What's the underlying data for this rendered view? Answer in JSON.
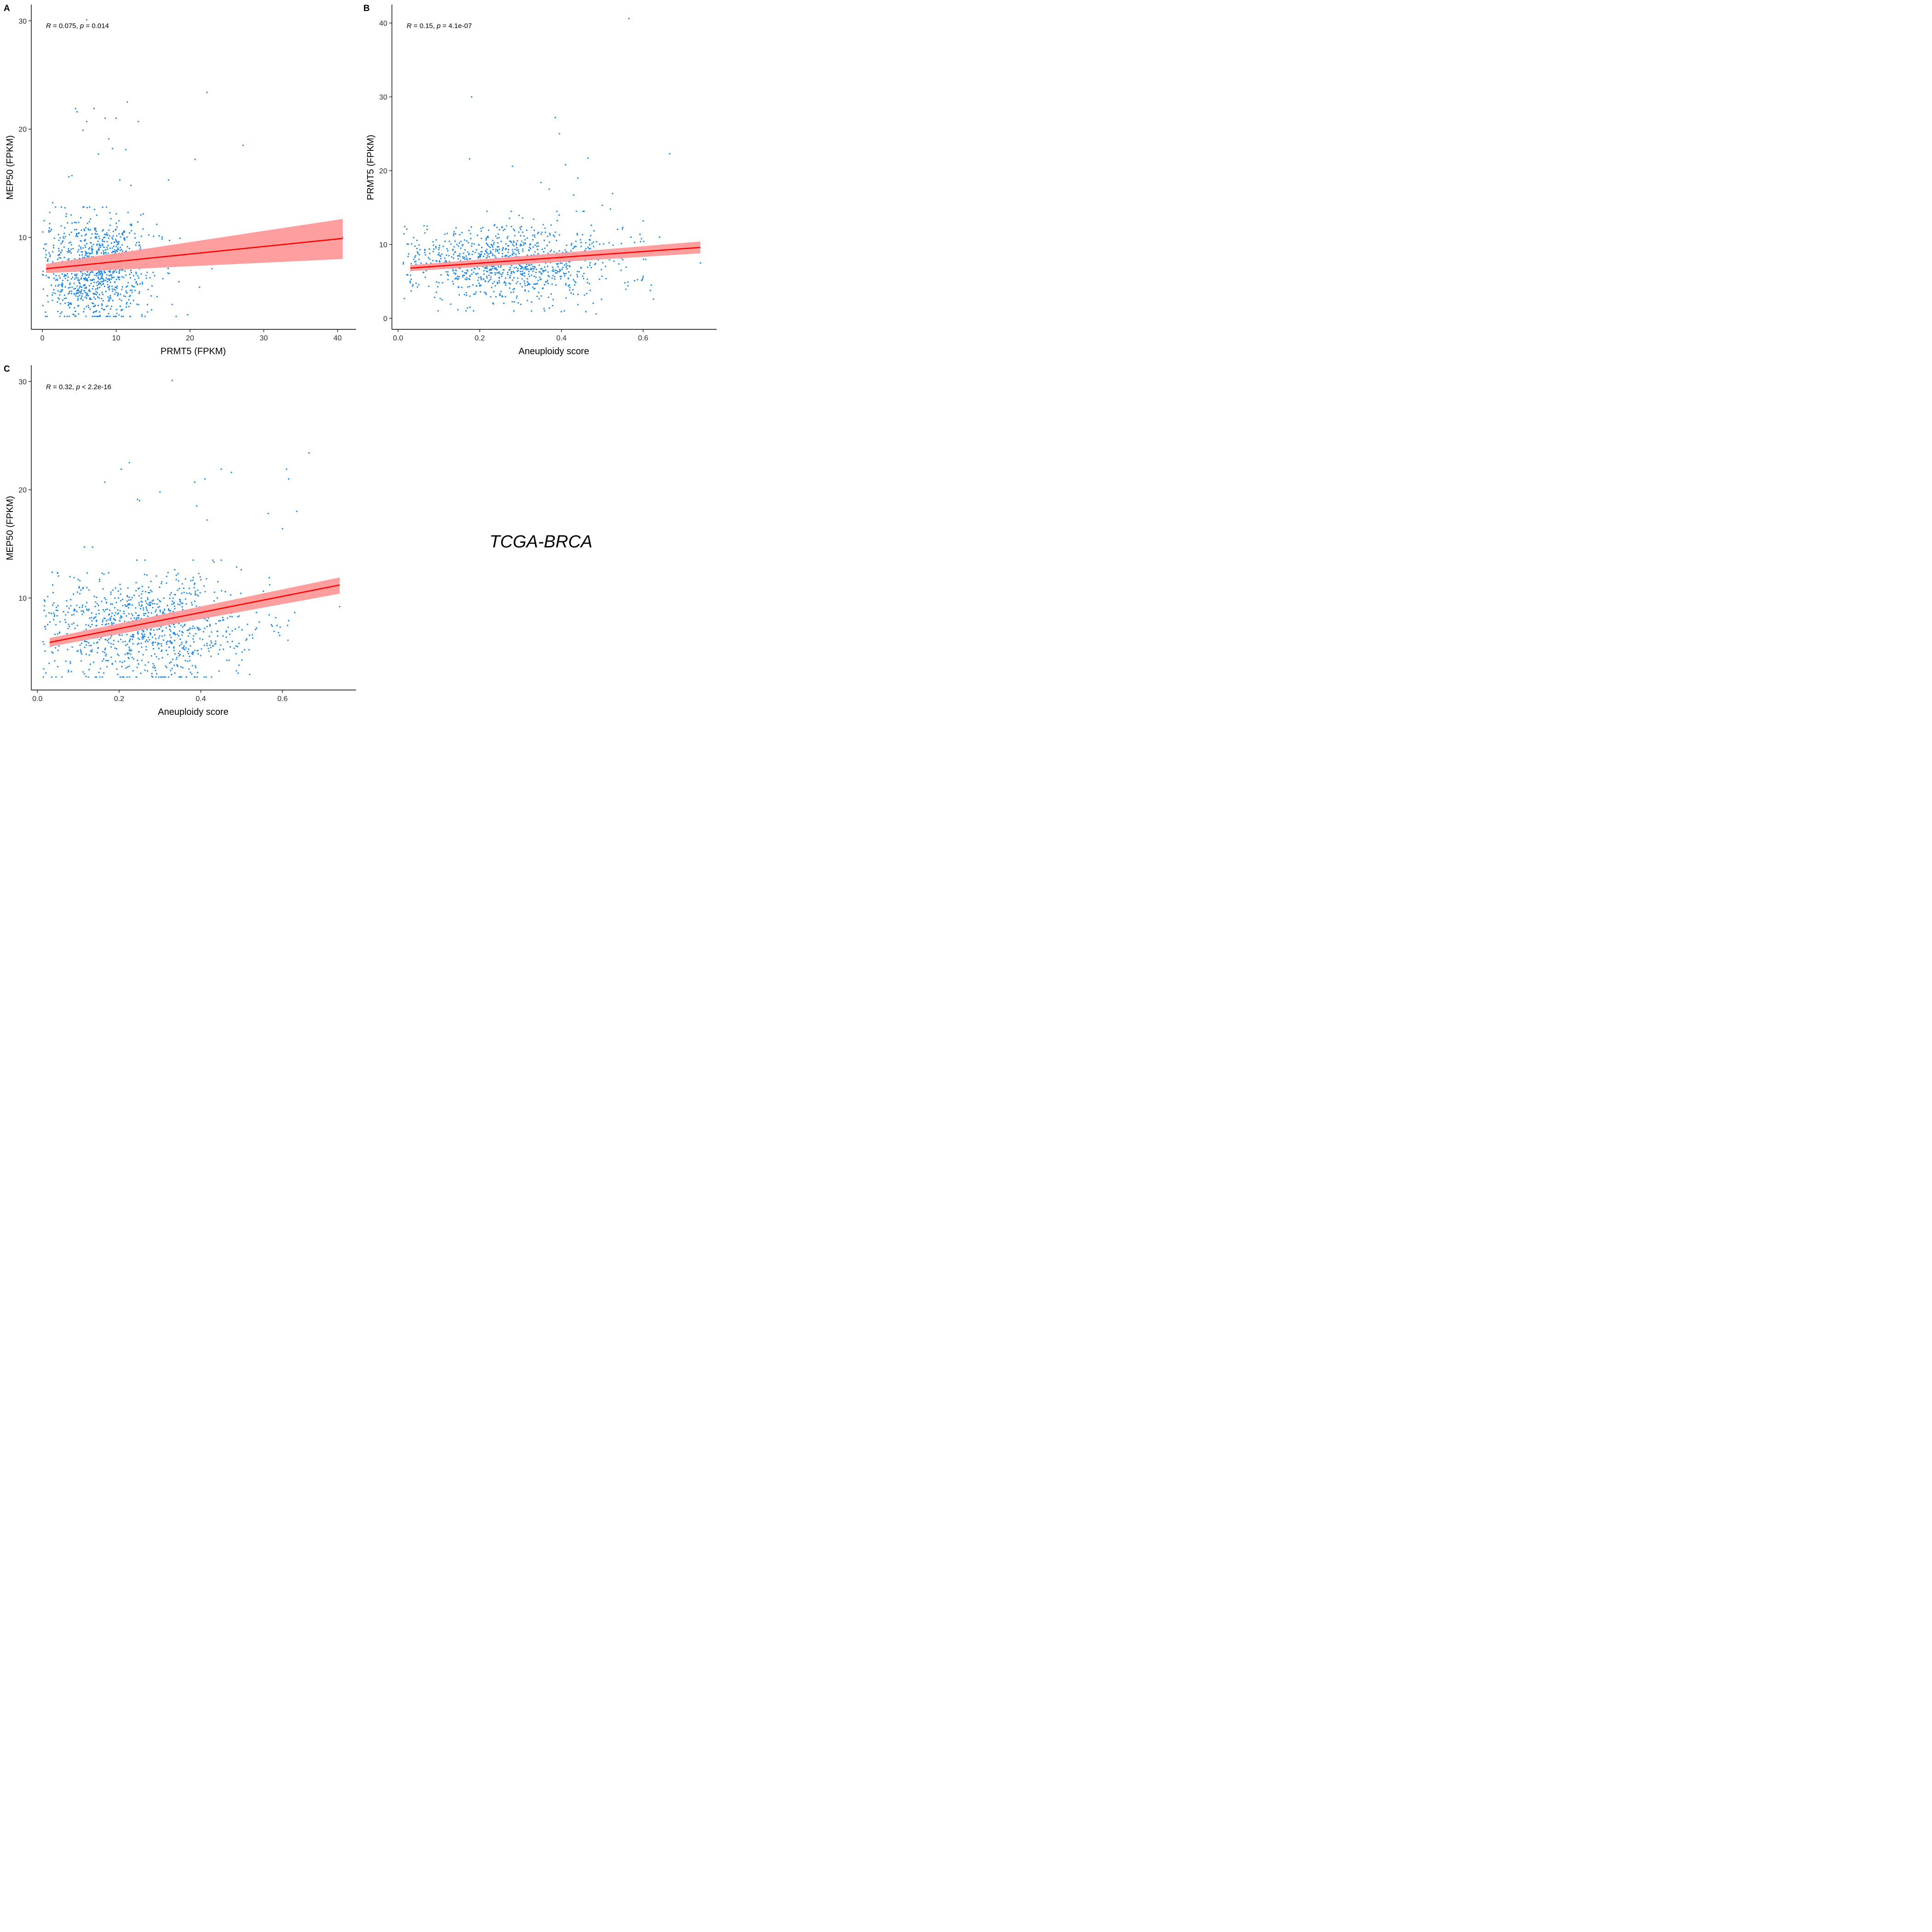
{
  "dataset_label": "TCGA-BRCA",
  "colors": {
    "points": "#1E88E5",
    "fit_line": "#FF0000",
    "ci_band": "#FF9999"
  },
  "chart_data": [
    {
      "panel": "A",
      "type": "scatter",
      "xlabel": "PRMT5 (FPKM)",
      "ylabel": "MEP50 (FPKM)",
      "xlim": [
        -1.5,
        42.5
      ],
      "ylim": [
        1.5,
        31.5
      ],
      "xticks": [
        0,
        10,
        20,
        30,
        40
      ],
      "yticks": [
        10,
        20,
        30
      ],
      "annotation": {
        "r_symbol": "R",
        "r_text": " = 0.075, ",
        "p_symbol": "p",
        "p_text": " = 0.014"
      },
      "fit": {
        "x": [
          0.5,
          40.7
        ],
        "y": [
          7.1,
          9.9
        ],
        "ci_low": [
          6.7,
          8.0
        ],
        "ci_high": [
          7.55,
          11.7
        ]
      },
      "point_cloud": {
        "n": 1000,
        "x_center": 7.5,
        "x_spread": 3.6,
        "y_center": 7.0,
        "y_spread": 2.4,
        "y_min": 2.7,
        "y_max": 12.8
      },
      "points": [
        [
          6.0,
          30.1
        ],
        [
          22.3,
          23.4
        ],
        [
          11.5,
          22.5
        ],
        [
          4.5,
          21.9
        ],
        [
          4.7,
          21.6
        ],
        [
          7.0,
          21.9
        ],
        [
          8.5,
          21.0
        ],
        [
          10.0,
          21.0
        ],
        [
          6.0,
          20.7
        ],
        [
          13.0,
          20.7
        ],
        [
          5.5,
          19.9
        ],
        [
          9.0,
          19.1
        ],
        [
          27.2,
          18.5
        ],
        [
          9.5,
          18.2
        ],
        [
          11.3,
          18.1
        ],
        [
          20.7,
          17.2
        ],
        [
          7.6,
          17.7
        ],
        [
          17.1,
          15.3
        ],
        [
          10.5,
          15.3
        ],
        [
          12.0,
          14.8
        ],
        [
          4.0,
          15.7
        ],
        [
          3.6,
          15.6
        ],
        [
          24.9,
          8.4
        ],
        [
          21.3,
          5.4
        ],
        [
          23.0,
          7.1
        ],
        [
          19.0,
          9.0
        ],
        [
          18.5,
          5.9
        ],
        [
          17.6,
          3.8
        ],
        [
          16.2,
          7.4
        ],
        [
          14.8,
          3.3
        ],
        [
          15.5,
          11.2
        ],
        [
          1.4,
          13.2
        ],
        [
          0.5,
          8.4
        ],
        [
          40.7,
          10.0
        ],
        [
          1.0,
          12.3
        ]
      ]
    },
    {
      "panel": "B",
      "type": "scatter",
      "xlabel": "Aneuploidy score",
      "ylabel": "PRMT5 (FPKM)",
      "xlim": [
        -0.015,
        0.78
      ],
      "ylim": [
        -1.5,
        42.5
      ],
      "xticks": [
        0.0,
        0.2,
        0.4,
        0.6
      ],
      "xtick_labels": [
        "0.0",
        "0.2",
        "0.4",
        "0.6"
      ],
      "yticks": [
        0,
        10,
        20,
        30,
        40
      ],
      "annotation": {
        "r_symbol": "R",
        "r_text": " = 0.15, ",
        "p_symbol": "p",
        "p_text": " = 4.1e-07"
      },
      "fit": {
        "x": [
          0.03,
          0.74
        ],
        "y": [
          6.8,
          9.6
        ],
        "ci_low": [
          6.4,
          8.8
        ],
        "ci_high": [
          7.2,
          10.4
        ]
      },
      "point_cloud": {
        "n": 1000,
        "x_center": 0.27,
        "x_spread": 0.13,
        "y_center": 7.5,
        "y_spread": 2.6,
        "y_min": 1.0,
        "y_max": 14.5
      },
      "points": [
        [
          0.565,
          40.6
        ],
        [
          0.18,
          30.0
        ],
        [
          0.385,
          27.2
        ],
        [
          0.665,
          22.3
        ],
        [
          0.395,
          25.0
        ],
        [
          0.175,
          21.6
        ],
        [
          0.465,
          21.7
        ],
        [
          0.28,
          20.6
        ],
        [
          0.41,
          20.8
        ],
        [
          0.44,
          19.0
        ],
        [
          0.35,
          18.4
        ],
        [
          0.37,
          17.5
        ],
        [
          0.43,
          16.7
        ],
        [
          0.525,
          16.9
        ],
        [
          0.6,
          13.2
        ],
        [
          0.74,
          7.5
        ],
        [
          0.03,
          4.8
        ],
        [
          0.625,
          2.6
        ],
        [
          0.485,
          0.6
        ],
        [
          0.46,
          0.9
        ],
        [
          0.4,
          0.9
        ],
        [
          0.17,
          1.4
        ],
        [
          0.62,
          4.5
        ],
        [
          0.55,
          12.3
        ],
        [
          0.5,
          15.3
        ],
        [
          0.57,
          11.0
        ],
        [
          0.64,
          11.0
        ],
        [
          0.52,
          14.8
        ]
      ]
    },
    {
      "panel": "C",
      "type": "scatter",
      "xlabel": "Aneuploidy score",
      "ylabel": "MEP50 (FPKM)",
      "xlim": [
        -0.015,
        0.78
      ],
      "ylim": [
        1.5,
        31.5
      ],
      "xticks": [
        0.0,
        0.2,
        0.4,
        0.6
      ],
      "xtick_labels": [
        "0.0",
        "0.2",
        "0.4",
        "0.6"
      ],
      "yticks": [
        10,
        20,
        30
      ],
      "annotation": {
        "r_symbol": "R",
        "r_text": " = 0.32, ",
        "p_symbol": "p",
        "p_text": " < 2.2e-16"
      },
      "fit": {
        "x": [
          0.03,
          0.74
        ],
        "y": [
          5.9,
          11.2
        ],
        "ci_low": [
          5.5,
          10.4
        ],
        "ci_high": [
          6.3,
          11.9
        ]
      },
      "point_cloud": {
        "n": 1000,
        "x_center": 0.27,
        "x_spread": 0.13,
        "y_center": 7.3,
        "y_spread": 2.4,
        "y_min": 2.7,
        "y_max": 13.5
      },
      "points": [
        [
          0.33,
          30.1
        ],
        [
          0.665,
          23.4
        ],
        [
          0.225,
          22.5
        ],
        [
          0.205,
          21.9
        ],
        [
          0.45,
          21.9
        ],
        [
          0.475,
          21.6
        ],
        [
          0.61,
          21.9
        ],
        [
          0.615,
          21.0
        ],
        [
          0.41,
          21.0
        ],
        [
          0.385,
          20.7
        ],
        [
          0.165,
          20.7
        ],
        [
          0.245,
          19.1
        ],
        [
          0.25,
          19.0
        ],
        [
          0.3,
          19.8
        ],
        [
          0.635,
          18.0
        ],
        [
          0.565,
          17.8
        ],
        [
          0.39,
          18.5
        ],
        [
          0.415,
          17.2
        ],
        [
          0.6,
          16.4
        ],
        [
          0.74,
          9.2
        ],
        [
          0.115,
          14.7
        ],
        [
          0.135,
          14.7
        ],
        [
          0.575,
          7.4
        ],
        [
          0.615,
          7.9
        ],
        [
          0.365,
          2.7
        ],
        [
          0.115,
          3.0
        ],
        [
          0.04,
          8.6
        ]
      ]
    }
  ]
}
